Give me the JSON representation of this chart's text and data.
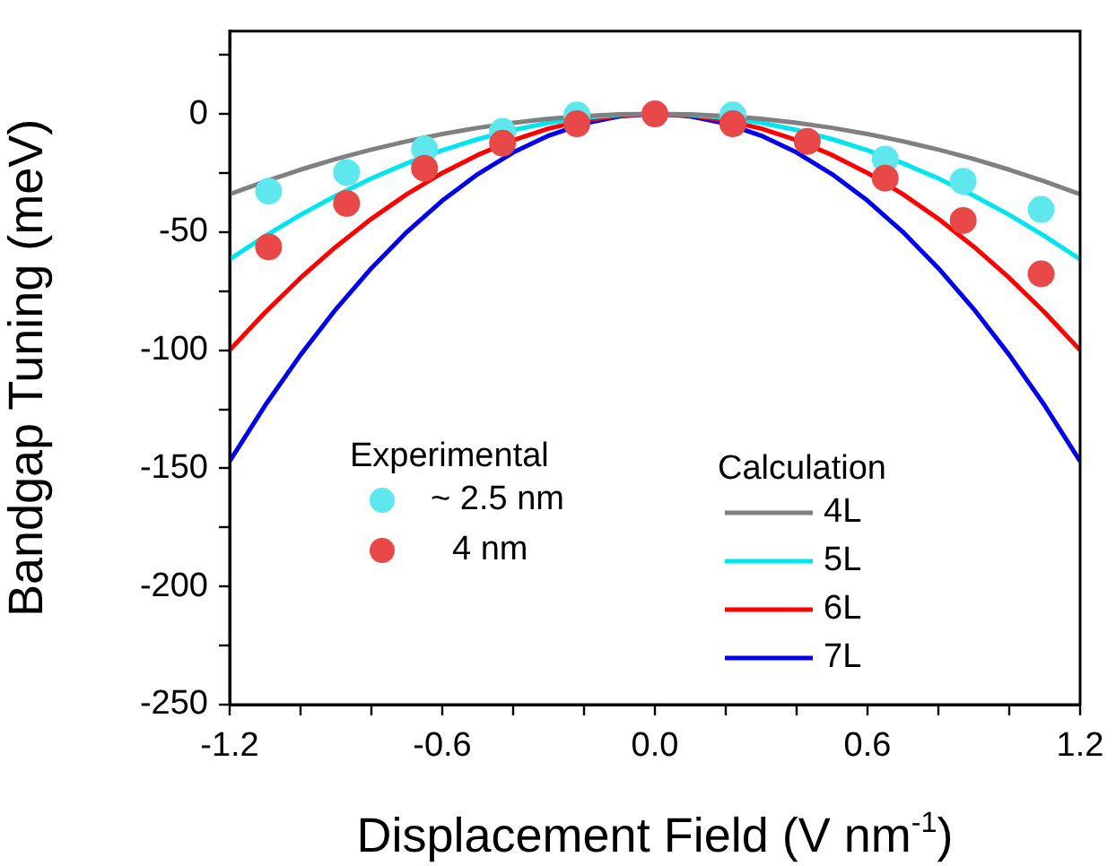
{
  "chart_data": {
    "type": "line",
    "xlabel": "Displacement Field (V nm$^{-1}$)",
    "ylabel": "Bandgap Tuning (meV)",
    "xlim": [
      -1.2,
      1.2
    ],
    "ylim": [
      -250,
      35
    ],
    "xticks": [
      -1.2,
      {
        "value": -1.0,
        "label": null
      },
      {
        "value": -0.8,
        "label": null
      },
      {
        "value": -0.6,
        "label": "-0.6"
      },
      {
        "value": -0.4,
        "label": null
      },
      {
        "value": -0.2,
        "label": null
      },
      {
        "value": 0,
        "label": "0.0"
      },
      {
        "value": 0.2,
        "label": null
      },
      {
        "value": 0.4,
        "label": null
      },
      0.6,
      {
        "value": 0.8,
        "label": null
      },
      {
        "value": 1.0,
        "label": null
      },
      1.2
    ],
    "yticks": [
      -250,
      {
        "value": -225,
        "label": null
      },
      -200,
      {
        "value": -175,
        "label": null
      },
      -150,
      {
        "value": -125,
        "label": null
      },
      -100,
      {
        "value": -75,
        "label": null
      },
      -50,
      {
        "value": -25,
        "label": null
      },
      0,
      {
        "value": 25,
        "label": null
      }
    ],
    "grid": false,
    "legend": "center",
    "line_style": "solid",
    "annotations": [
      "Experimental",
      "Calculation"
    ],
    "series": [
      {
        "name": "~ 2.5 nm",
        "type": "scatter",
        "marker": "circle",
        "color": "#5ee8ee",
        "x": [
          -1.09,
          -0.87,
          -0.65,
          -0.43,
          -0.22,
          0,
          0.22,
          0.43,
          0.65,
          0.87,
          1.09
        ],
        "values": [
          -32.7,
          -24.8,
          -14.9,
          -7.4,
          -0.5,
          null,
          -0.5,
          null,
          -19.1,
          -28.5,
          -40.4
        ]
      },
      {
        "name": "4 nm",
        "type": "scatter",
        "marker": "circle",
        "color": "#e84848",
        "x": [
          -1.09,
          -0.87,
          -0.65,
          -0.43,
          -0.22,
          0,
          0.22,
          0.43,
          0.65,
          0.87,
          1.09
        ],
        "values": [
          -56.3,
          -37.9,
          -23.0,
          -12.4,
          -4.2,
          0,
          -4.2,
          -11.6,
          -27.2,
          -45.1,
          -67.7
        ]
      },
      {
        "name": "4L",
        "type": "line",
        "color": "#808080",
        "x": [
          -1.2,
          -1.1,
          -1.0,
          -0.9,
          -0.8,
          -0.7,
          -0.6,
          -0.5,
          -0.4,
          -0.3,
          -0.2,
          -0.1,
          0,
          0.1,
          0.2,
          0.3,
          0.4,
          0.5,
          0.6,
          0.7,
          0.8,
          0.9,
          1.0,
          1.1,
          1.2
        ],
        "values": [
          -34.0,
          -28.6,
          -23.6,
          -19.1,
          -15.1,
          -11.6,
          -8.5,
          -5.9,
          -3.8,
          -2.1,
          -0.9,
          -0.2,
          0,
          -0.2,
          -0.9,
          -2.1,
          -3.8,
          -5.9,
          -8.5,
          -11.6,
          -15.1,
          -19.1,
          -23.6,
          -28.6,
          -34.0
        ]
      },
      {
        "name": "5L",
        "type": "line",
        "color": "#00e5ee",
        "x": [
          -1.2,
          -1.1,
          -1.0,
          -0.9,
          -0.8,
          -0.7,
          -0.6,
          -0.5,
          -0.4,
          -0.3,
          -0.2,
          -0.1,
          0,
          0.1,
          0.2,
          0.3,
          0.4,
          0.5,
          0.6,
          0.7,
          0.8,
          0.9,
          1.0,
          1.1,
          1.2
        ],
        "values": [
          -61.5,
          -51.7,
          -42.7,
          -34.6,
          -27.3,
          -20.9,
          -15.4,
          -10.7,
          -6.8,
          -3.8,
          -1.7,
          -0.4,
          0,
          -0.4,
          -1.7,
          -3.8,
          -6.8,
          -10.7,
          -15.4,
          -20.9,
          -27.3,
          -34.6,
          -42.7,
          -51.7,
          -61.5
        ]
      },
      {
        "name": "6L",
        "type": "line",
        "color": "#ff0000",
        "x": [
          -1.2,
          -1.1,
          -1.0,
          -0.9,
          -0.8,
          -0.7,
          -0.6,
          -0.5,
          -0.4,
          -0.3,
          -0.2,
          -0.1,
          0,
          0.1,
          0.2,
          0.3,
          0.4,
          0.5,
          0.6,
          0.7,
          0.8,
          0.9,
          1.0,
          1.1,
          1.2
        ],
        "values": [
          -100,
          -84.0,
          -69.4,
          -56.2,
          -44.4,
          -34.0,
          -25.0,
          -17.4,
          -11.1,
          -6.2,
          -2.8,
          -0.7,
          0,
          -0.7,
          -2.8,
          -6.2,
          -11.1,
          -17.4,
          -25.0,
          -34.0,
          -44.4,
          -56.2,
          -69.4,
          -84.0,
          -100
        ]
      },
      {
        "name": "7L",
        "type": "line",
        "color": "#0000ee",
        "x": [
          -1.2,
          -1.1,
          -1.0,
          -0.9,
          -0.8,
          -0.7,
          -0.6,
          -0.5,
          -0.4,
          -0.3,
          -0.2,
          -0.1,
          0,
          0.1,
          0.2,
          0.3,
          0.4,
          0.5,
          0.6,
          0.7,
          0.8,
          0.9,
          1.0,
          1.1,
          1.2
        ],
        "values": [
          -147,
          -123.4,
          -102,
          -82.6,
          -65.3,
          -50.0,
          -36.7,
          -25.5,
          -16.3,
          -9.2,
          -4.1,
          -1.0,
          0,
          -1.0,
          -4.1,
          -9.2,
          -16.3,
          -25.5,
          -36.7,
          -50.0,
          -65.3,
          -82.6,
          -102,
          -123.4,
          -147
        ]
      }
    ]
  }
}
